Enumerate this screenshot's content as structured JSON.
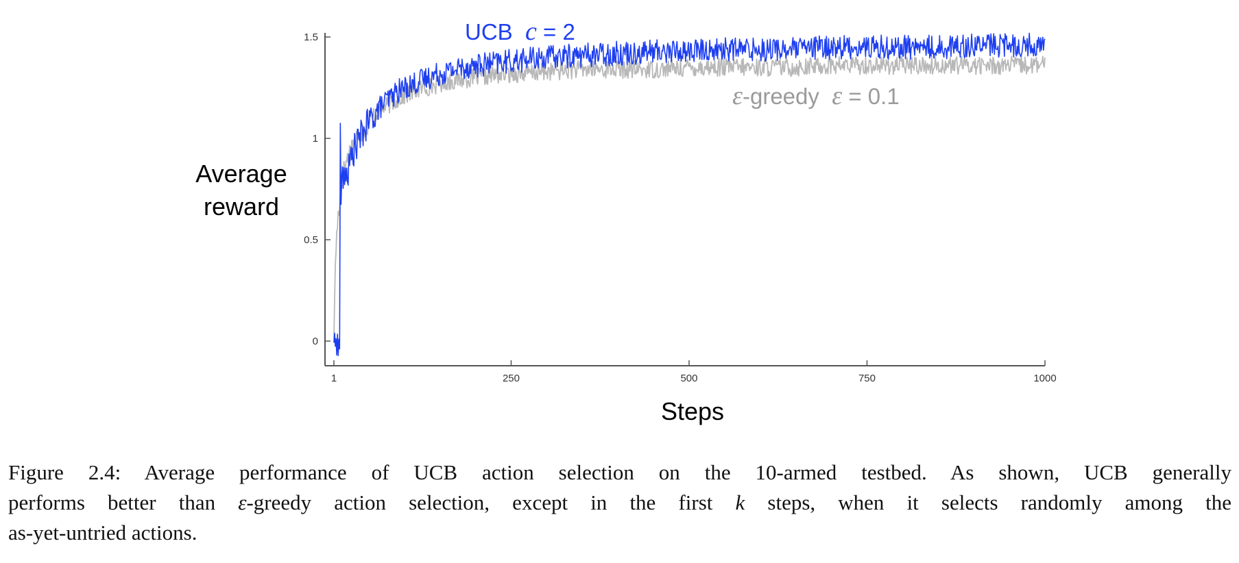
{
  "chart_data": {
    "type": "line",
    "title": "",
    "xlabel": "Steps",
    "ylabel_lines": [
      "Average",
      "reward"
    ],
    "xlim": [
      1,
      1000
    ],
    "ylim": [
      -0.12,
      1.52
    ],
    "xticks": [
      {
        "value": 1,
        "label": "1"
      },
      {
        "value": 250,
        "label": "250"
      },
      {
        "value": 500,
        "label": "500"
      },
      {
        "value": 750,
        "label": "750"
      },
      {
        "value": 1000,
        "label": "1000"
      }
    ],
    "yticks": [
      {
        "value": 0,
        "label": "0"
      },
      {
        "value": 0.5,
        "label": "0.5"
      },
      {
        "value": 1,
        "label": "1"
      },
      {
        "value": 1.5,
        "label": "1.5"
      }
    ],
    "grid": false,
    "legend": "inline labels",
    "series": [
      {
        "name": "ε-greedy ε = 0.1",
        "label_prefix": "ε",
        "label_mid": "-greedy  ",
        "label_sym": "ε",
        "label_suffix": " = 0.1",
        "color": "#b8b8b8",
        "x": [
          1,
          3,
          5,
          7,
          10,
          13,
          16,
          20,
          25,
          30,
          40,
          50,
          60,
          70,
          80,
          90,
          100,
          120,
          140,
          160,
          180,
          200,
          225,
          250,
          275,
          300,
          350,
          400,
          450,
          500,
          550,
          600,
          650,
          700,
          750,
          800,
          850,
          900,
          950,
          1000
        ],
        "y": [
          0.02,
          0.38,
          0.52,
          0.62,
          0.72,
          0.8,
          0.86,
          0.9,
          0.95,
          0.99,
          1.04,
          1.08,
          1.12,
          1.15,
          1.17,
          1.19,
          1.21,
          1.24,
          1.26,
          1.28,
          1.29,
          1.3,
          1.31,
          1.32,
          1.32,
          1.33,
          1.34,
          1.34,
          1.34,
          1.35,
          1.35,
          1.35,
          1.35,
          1.36,
          1.36,
          1.36,
          1.36,
          1.36,
          1.36,
          1.36
        ]
      },
      {
        "name": "UCB c = 2",
        "label_prefix": "UCB  ",
        "label_sym": "c",
        "label_suffix": " = 2",
        "color": "#1e3ff0",
        "x": [
          1,
          2,
          3,
          4,
          5,
          6,
          7,
          8,
          9,
          10,
          11,
          12,
          14,
          16,
          18,
          20,
          25,
          30,
          40,
          50,
          60,
          70,
          80,
          90,
          100,
          120,
          140,
          160,
          180,
          200,
          225,
          250,
          275,
          300,
          350,
          400,
          450,
          500,
          550,
          600,
          650,
          700,
          750,
          800,
          850,
          900,
          950,
          1000
        ],
        "y": [
          0.0,
          0.02,
          -0.03,
          0.03,
          -0.05,
          0.02,
          -0.06,
          0.0,
          -0.04,
          1.08,
          0.7,
          0.8,
          0.8,
          0.77,
          0.85,
          0.82,
          0.9,
          0.95,
          1.02,
          1.08,
          1.13,
          1.17,
          1.2,
          1.23,
          1.25,
          1.28,
          1.31,
          1.33,
          1.35,
          1.36,
          1.37,
          1.38,
          1.39,
          1.4,
          1.41,
          1.42,
          1.43,
          1.43,
          1.44,
          1.44,
          1.44,
          1.45,
          1.45,
          1.45,
          1.45,
          1.46,
          1.46,
          1.46
        ]
      }
    ]
  },
  "caption": {
    "line1": "Figure 2.4: Average performance of UCB action selection on the 10-armed testbed. As shown, UCB generally",
    "line2_a": "performs better than ",
    "line2_eps": "ε",
    "line2_b": "-greedy action selection, except in the first ",
    "line2_k": "k",
    "line2_c": " steps, when it selects randomly among the",
    "line3": "as-yet-untried actions."
  }
}
